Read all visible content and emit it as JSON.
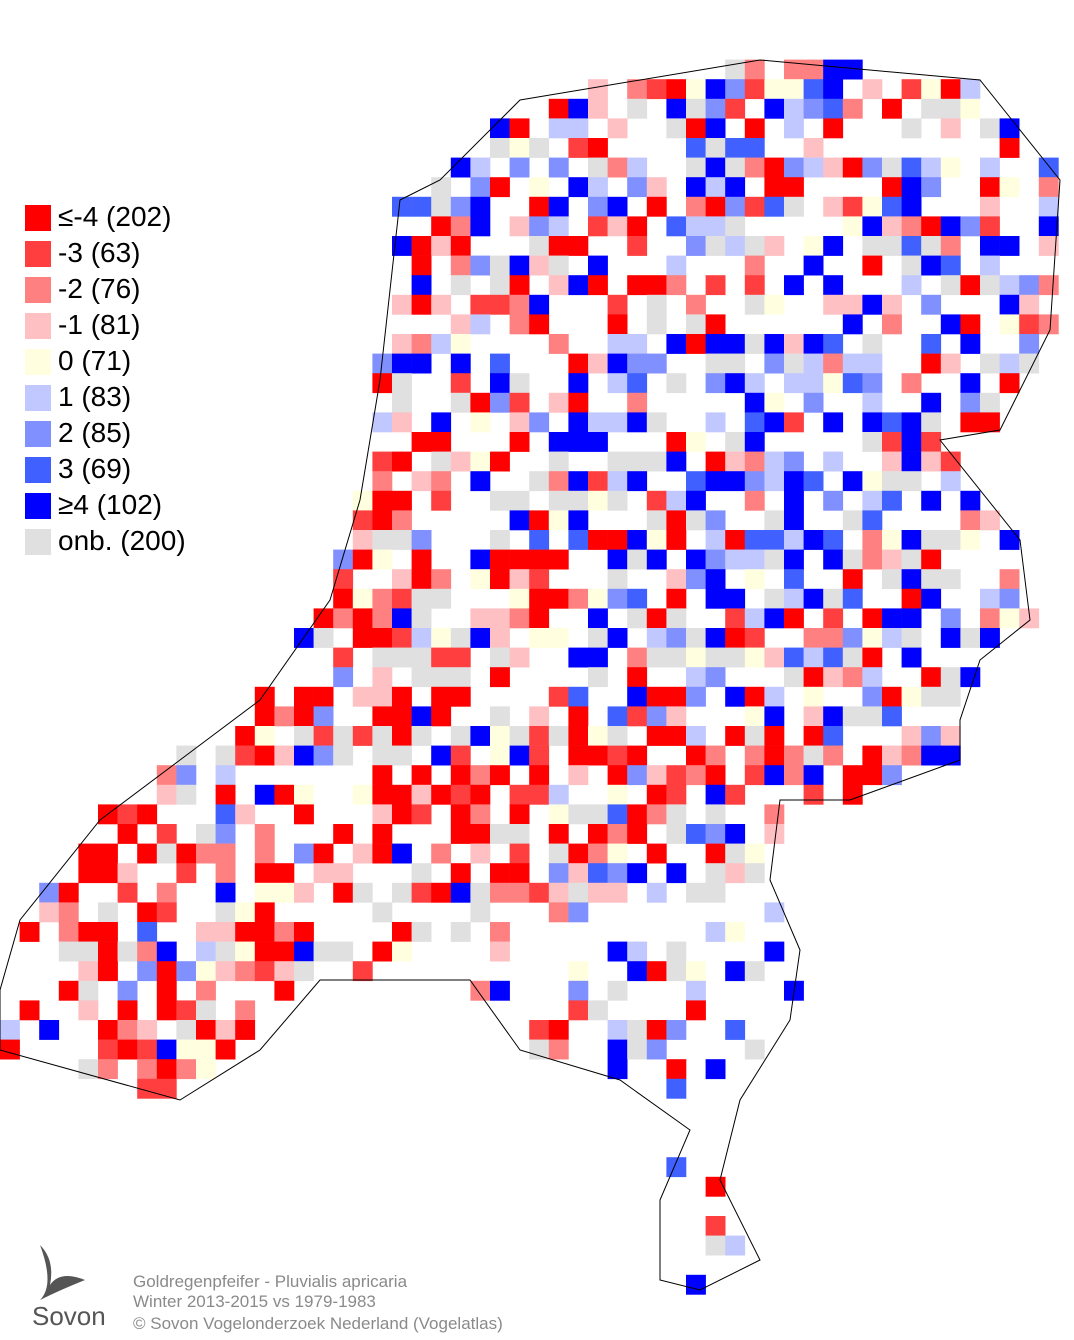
{
  "map": {
    "legend": [
      {
        "class": "≤-4",
        "count": 202,
        "color": "#ff0000"
      },
      {
        "class": "-3",
        "count": 63,
        "color": "#ff3f3f"
      },
      {
        "class": "-2",
        "count": 76,
        "color": "#ff8080"
      },
      {
        "class": "-1",
        "count": 81,
        "color": "#ffc0c4"
      },
      {
        "class": "0",
        "count": 71,
        "color": "#ffffe0"
      },
      {
        "class": "1",
        "count": 83,
        "color": "#c0c8ff"
      },
      {
        "class": "2",
        "count": 85,
        "color": "#8090ff"
      },
      {
        "class": "3",
        "count": 69,
        "color": "#4060ff"
      },
      {
        "class": "≥4",
        "count": 102,
        "color": "#0000ff"
      },
      {
        "class": "onb.",
        "count": 200,
        "color": "#e0e0e0"
      }
    ],
    "caption": [
      "Goldregenpfeifer - Pluvialis apricaria",
      "Winter 2013-2015 vs 1979-1983",
      "© Sovon Vogelonderzoek Nederland (Vogelatlas)"
    ],
    "logo": "Sovon"
  }
}
